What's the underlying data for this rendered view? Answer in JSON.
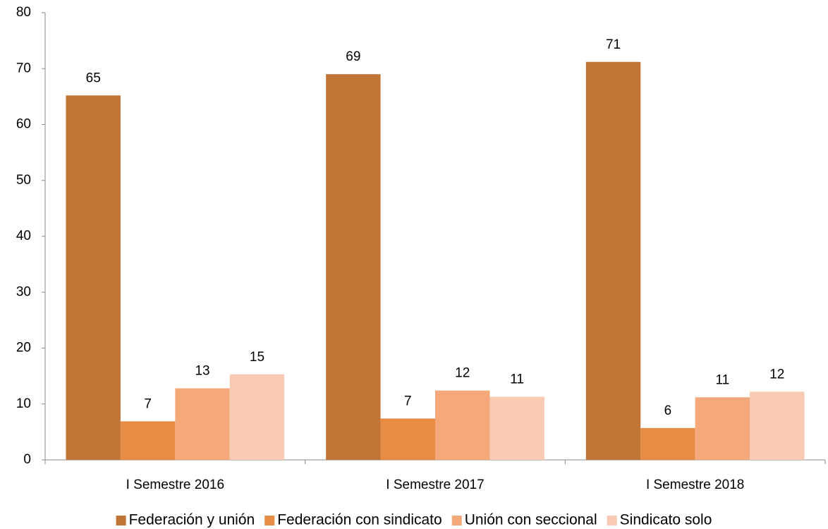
{
  "chart_data": {
    "type": "bar",
    "categories": [
      "I Semestre 2016",
      "I Semestre 2017",
      "I Semestre 2018"
    ],
    "series": [
      {
        "name": "Federación y unión",
        "color": "#c07436",
        "values": [
          65.2,
          69.0,
          71.2
        ],
        "value_labels": [
          "65",
          "69",
          "71"
        ]
      },
      {
        "name": "Federación con sindicato",
        "color": "#e78c45",
        "values": [
          6.9,
          7.4,
          5.7
        ],
        "value_labels": [
          "7",
          "7",
          "6"
        ]
      },
      {
        "name": "Unión con seccional",
        "color": "#f5a97a",
        "values": [
          12.8,
          12.4,
          11.2
        ],
        "value_labels": [
          "13",
          "12",
          "11"
        ]
      },
      {
        "name": "Sindicato solo",
        "color": "#f8c9b3",
        "values": [
          15.3,
          11.3,
          12.2
        ],
        "value_labels": [
          "15",
          "11",
          "12"
        ]
      }
    ],
    "ylim": [
      0,
      80
    ],
    "yticks": [
      0,
      10,
      20,
      30,
      40,
      50,
      60,
      70,
      80
    ],
    "grid": false,
    "legend": "bottom"
  }
}
